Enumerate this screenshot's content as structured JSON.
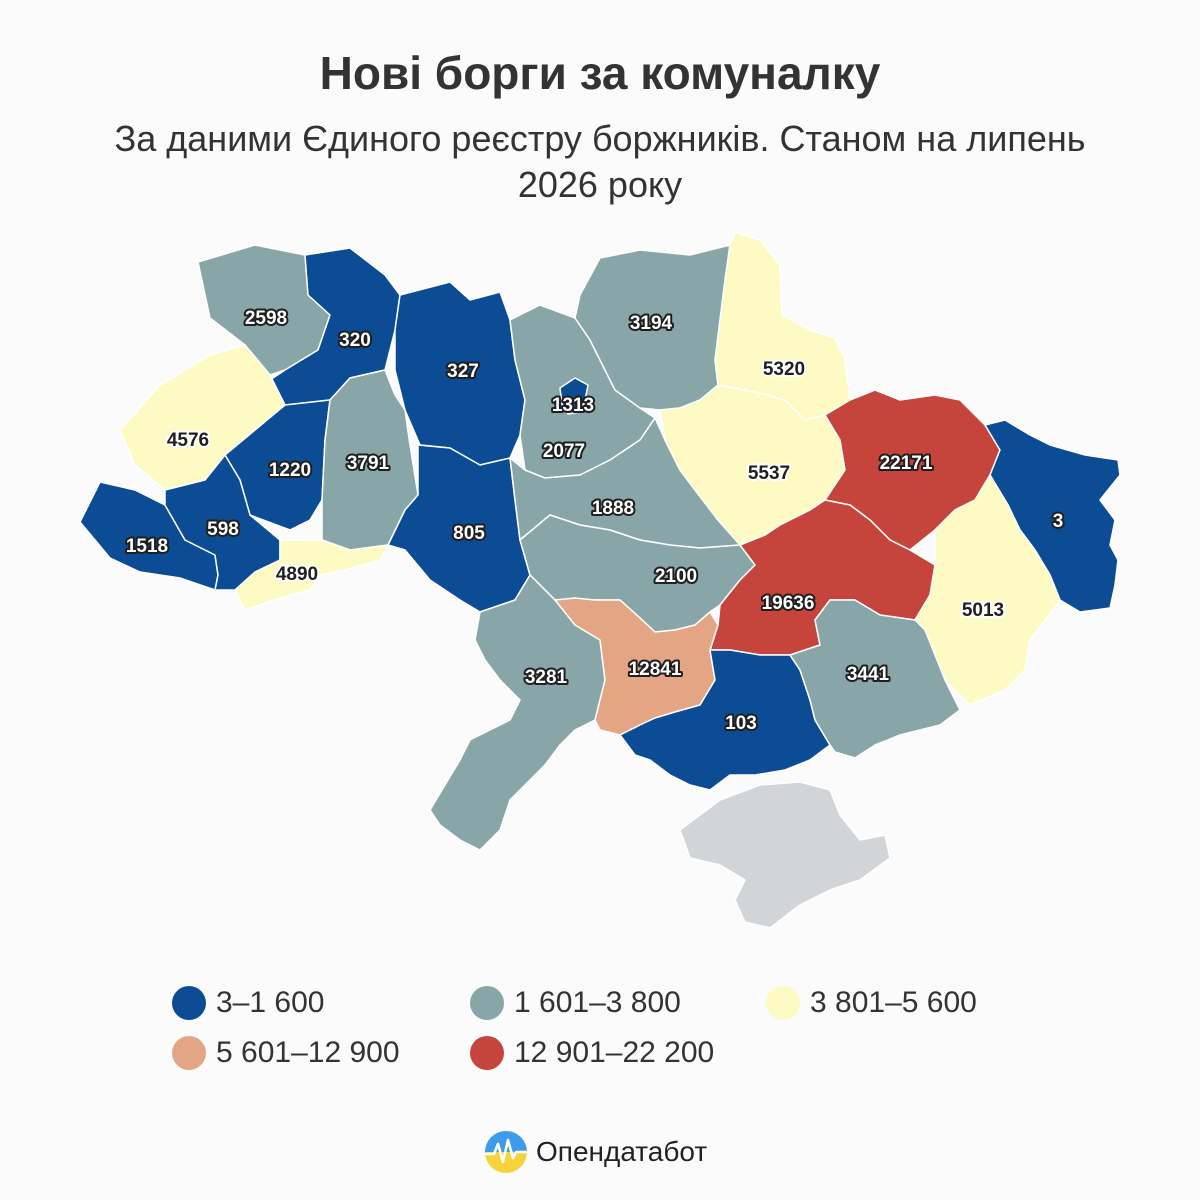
{
  "header": {
    "title": "Нові борги за комуналку",
    "subtitle": "За даними Єдиного реєстру боржників. Станом на липень 2026 року"
  },
  "colors": {
    "class1": "#0b4c94",
    "class2": "#88a6a8",
    "class3": "#fdfac4",
    "class4": "#e3a584",
    "class5": "#c5443c",
    "crimea": "#d2d5d7"
  },
  "legend": [
    {
      "label": "3–1 600",
      "color": "#0b4c94"
    },
    {
      "label": "1 601–3 800",
      "color": "#88a6a8"
    },
    {
      "label": "3 801–5 600",
      "color": "#fdfac4"
    },
    {
      "label": "5 601–12 900",
      "color": "#e3a584"
    },
    {
      "label": "12 901–22 200",
      "color": "#c5443c"
    }
  ],
  "regions": [
    {
      "id": "volyn",
      "value": "2598",
      "cls": 2
    },
    {
      "id": "rivne",
      "value": "320",
      "cls": 1
    },
    {
      "id": "zhytomyr",
      "value": "327",
      "cls": 1
    },
    {
      "id": "kyiv-oblast",
      "value": "2077",
      "cls": 2
    },
    {
      "id": "kyiv-city",
      "value": "1313",
      "cls": 1
    },
    {
      "id": "chernihiv",
      "value": "3194",
      "cls": 2
    },
    {
      "id": "sumy",
      "value": "5320",
      "cls": 3
    },
    {
      "id": "lviv",
      "value": "4576",
      "cls": 3
    },
    {
      "id": "ternopil",
      "value": "1220",
      "cls": 1
    },
    {
      "id": "khmelnytskyi",
      "value": "3791",
      "cls": 2
    },
    {
      "id": "vinnytsia",
      "value": "805",
      "cls": 1
    },
    {
      "id": "cherkasy",
      "value": "1888",
      "cls": 2
    },
    {
      "id": "poltava",
      "value": "5537",
      "cls": 3
    },
    {
      "id": "kharkiv",
      "value": "22171",
      "cls": 5
    },
    {
      "id": "luhansk",
      "value": "3",
      "cls": 1
    },
    {
      "id": "zakarpattia",
      "value": "1518",
      "cls": 1
    },
    {
      "id": "ivano-frankivsk",
      "value": "598",
      "cls": 1
    },
    {
      "id": "chernivtsi",
      "value": "4890",
      "cls": 3
    },
    {
      "id": "kirovohrad",
      "value": "2100",
      "cls": 2
    },
    {
      "id": "dnipropetrovsk",
      "value": "19636",
      "cls": 5
    },
    {
      "id": "donetsk",
      "value": "5013",
      "cls": 3
    },
    {
      "id": "odesa",
      "value": "3281",
      "cls": 2
    },
    {
      "id": "mykolaiv",
      "value": "12841",
      "cls": 4
    },
    {
      "id": "kherson",
      "value": "103",
      "cls": 1
    },
    {
      "id": "zaporizhzhia",
      "value": "3441",
      "cls": 2
    }
  ],
  "brand": {
    "name": "Опендатабот"
  }
}
